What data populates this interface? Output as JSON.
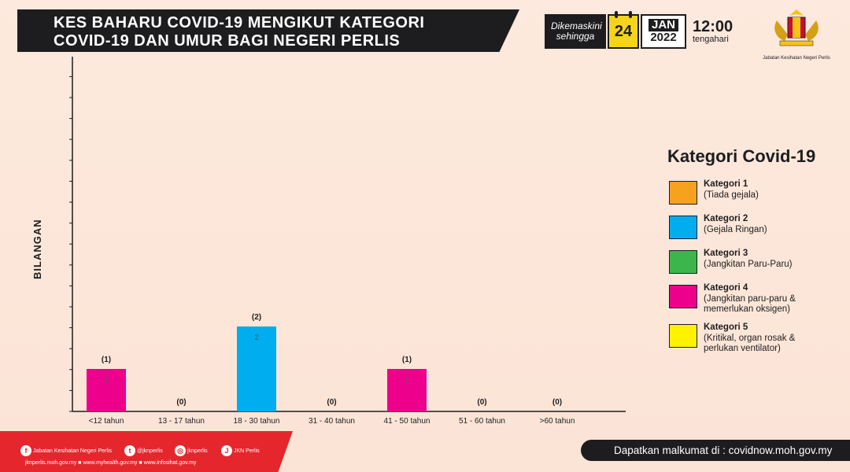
{
  "header": {
    "title_line1": "KES BAHARU COVID-19 MENGIKUT KATEGORI",
    "title_line2": "COVID-19 DAN UMUR BAGI NEGERI PERLIS",
    "updated_label_1": "Dikemaskini",
    "updated_label_2": "sehingga",
    "day": "24",
    "month": "JAN",
    "year": "2022",
    "time": "12:00",
    "period": "tengahari",
    "logo_caption": "Jabatan Kesihatan Negeri Perlis"
  },
  "chart_data": {
    "type": "bar",
    "ylabel": "BILANGAN",
    "categories": [
      "<12 tahun",
      "13 - 17 tahun",
      "18 - 30 tahun",
      "31 - 40 tahun",
      "41 - 50 tahun",
      "51 - 60 tahun",
      ">60 tahun"
    ],
    "totals": [
      1,
      0,
      2,
      0,
      1,
      0,
      0
    ],
    "total_labels": [
      "(1)",
      "(0)",
      "(2)",
      "(0)",
      "(1)",
      "(0)",
      "(0)"
    ],
    "series": [
      {
        "name": "Kategori 1",
        "color": "#f6a21f",
        "values": [
          0,
          0,
          0,
          0,
          0,
          0,
          0
        ]
      },
      {
        "name": "Kategori 2",
        "color": "#00aeef",
        "values": [
          0,
          0,
          2,
          0,
          0,
          0,
          0
        ]
      },
      {
        "name": "Kategori 3",
        "color": "#3cb54a",
        "values": [
          0,
          0,
          0,
          0,
          0,
          0,
          0
        ]
      },
      {
        "name": "Kategori 4",
        "color": "#ec008c",
        "values": [
          1,
          0,
          0,
          0,
          1,
          0,
          0
        ]
      },
      {
        "name": "Kategori 5",
        "color": "#fff200",
        "values": [
          0,
          0,
          0,
          0,
          0,
          0,
          0
        ]
      }
    ],
    "grid": false
  },
  "legend": {
    "title": "Kategori Covid-19",
    "items": [
      {
        "name": "Kategori 1",
        "desc": "(Tiada gejala)",
        "color": "#f6a21f"
      },
      {
        "name": "Kategori 2",
        "desc": "(Gejala Ringan)",
        "color": "#00aeef"
      },
      {
        "name": "Kategori 3",
        "desc": "(Jangkitan Paru-Paru)",
        "color": "#3cb54a"
      },
      {
        "name": "Kategori 4",
        "desc": "(Jangkitan paru-paru & memerlukan oksigen)",
        "color": "#ec008c"
      },
      {
        "name": "Kategori 5",
        "desc": "(Kritikal, organ rosak & perlukan ventilator)",
        "color": "#fff200"
      }
    ]
  },
  "footer": {
    "social": [
      {
        "icon": "facebook-icon",
        "glyph": "f",
        "label": "Jabatan Kesihatan Negeri Perlis"
      },
      {
        "icon": "twitter-icon",
        "glyph": "t",
        "label": "@jknperlis"
      },
      {
        "icon": "instagram-icon",
        "glyph": "◎",
        "label": "jknperlis"
      },
      {
        "icon": "jkn-icon",
        "glyph": "J",
        "label": "JKN Perlis"
      }
    ],
    "urls": "jknperlis.moh.gov.my ■ www.myhealth.gov.my ■ www.infosihat.gov.my",
    "info": "Dapatkan malkumat di : covidnow.moh.gov.my"
  }
}
